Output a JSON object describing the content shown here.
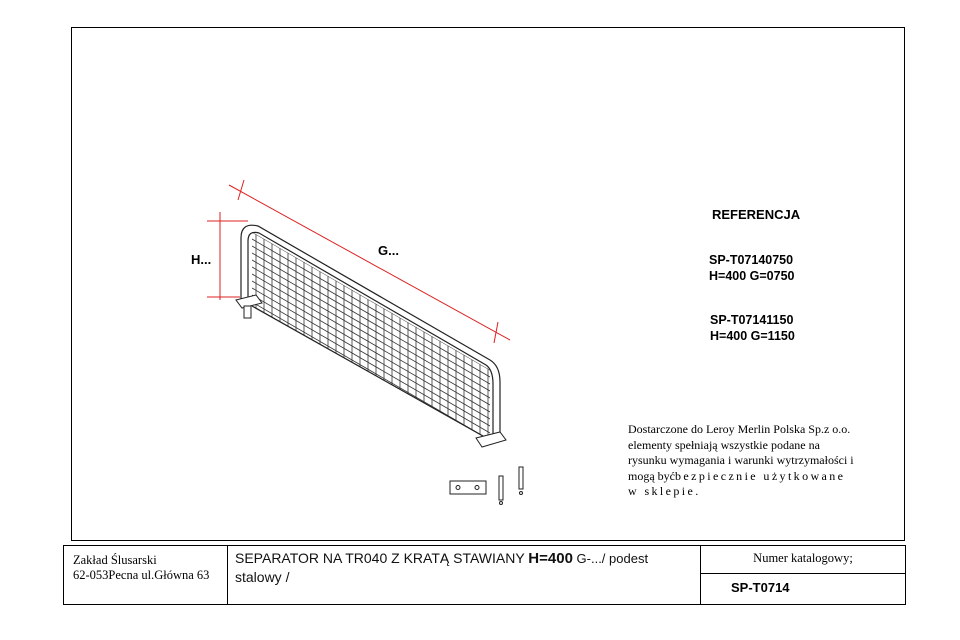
{
  "drawing": {
    "dimension_h": "H...",
    "dimension_g": "G..."
  },
  "references": {
    "title": "REFERENCJA",
    "items": [
      {
        "code": "SP-T07140750",
        "spec": "H=400  G=0750"
      },
      {
        "code": "SP-T07141150",
        "spec": "H=400  G=1150"
      }
    ]
  },
  "note": {
    "line1": "Dostarczone do Leroy Merlin Polska Sp.z o.o.",
    "line2": "elementy spełniają wszystkie podane na",
    "line3": "rysunku wymagania i warunki wytrzymałości i",
    "line4_a": "mogą być",
    "line4_b": "bezpiecznie użytkowane",
    "line5": "w sklepie."
  },
  "title_block": {
    "company_line1": "Zakład Ślusarski",
    "company_line2": "62-053Pecna ul.Główna 63",
    "description_a": "SEPARATOR NA TR040 Z KRATĄ STAWIANY ",
    "description_b": "H=400",
    "description_c": " G-.../ podest",
    "description_d": "stalowy /",
    "catalog_label": "Numer katalogowy;",
    "catalog_value": "SP-T0714"
  }
}
